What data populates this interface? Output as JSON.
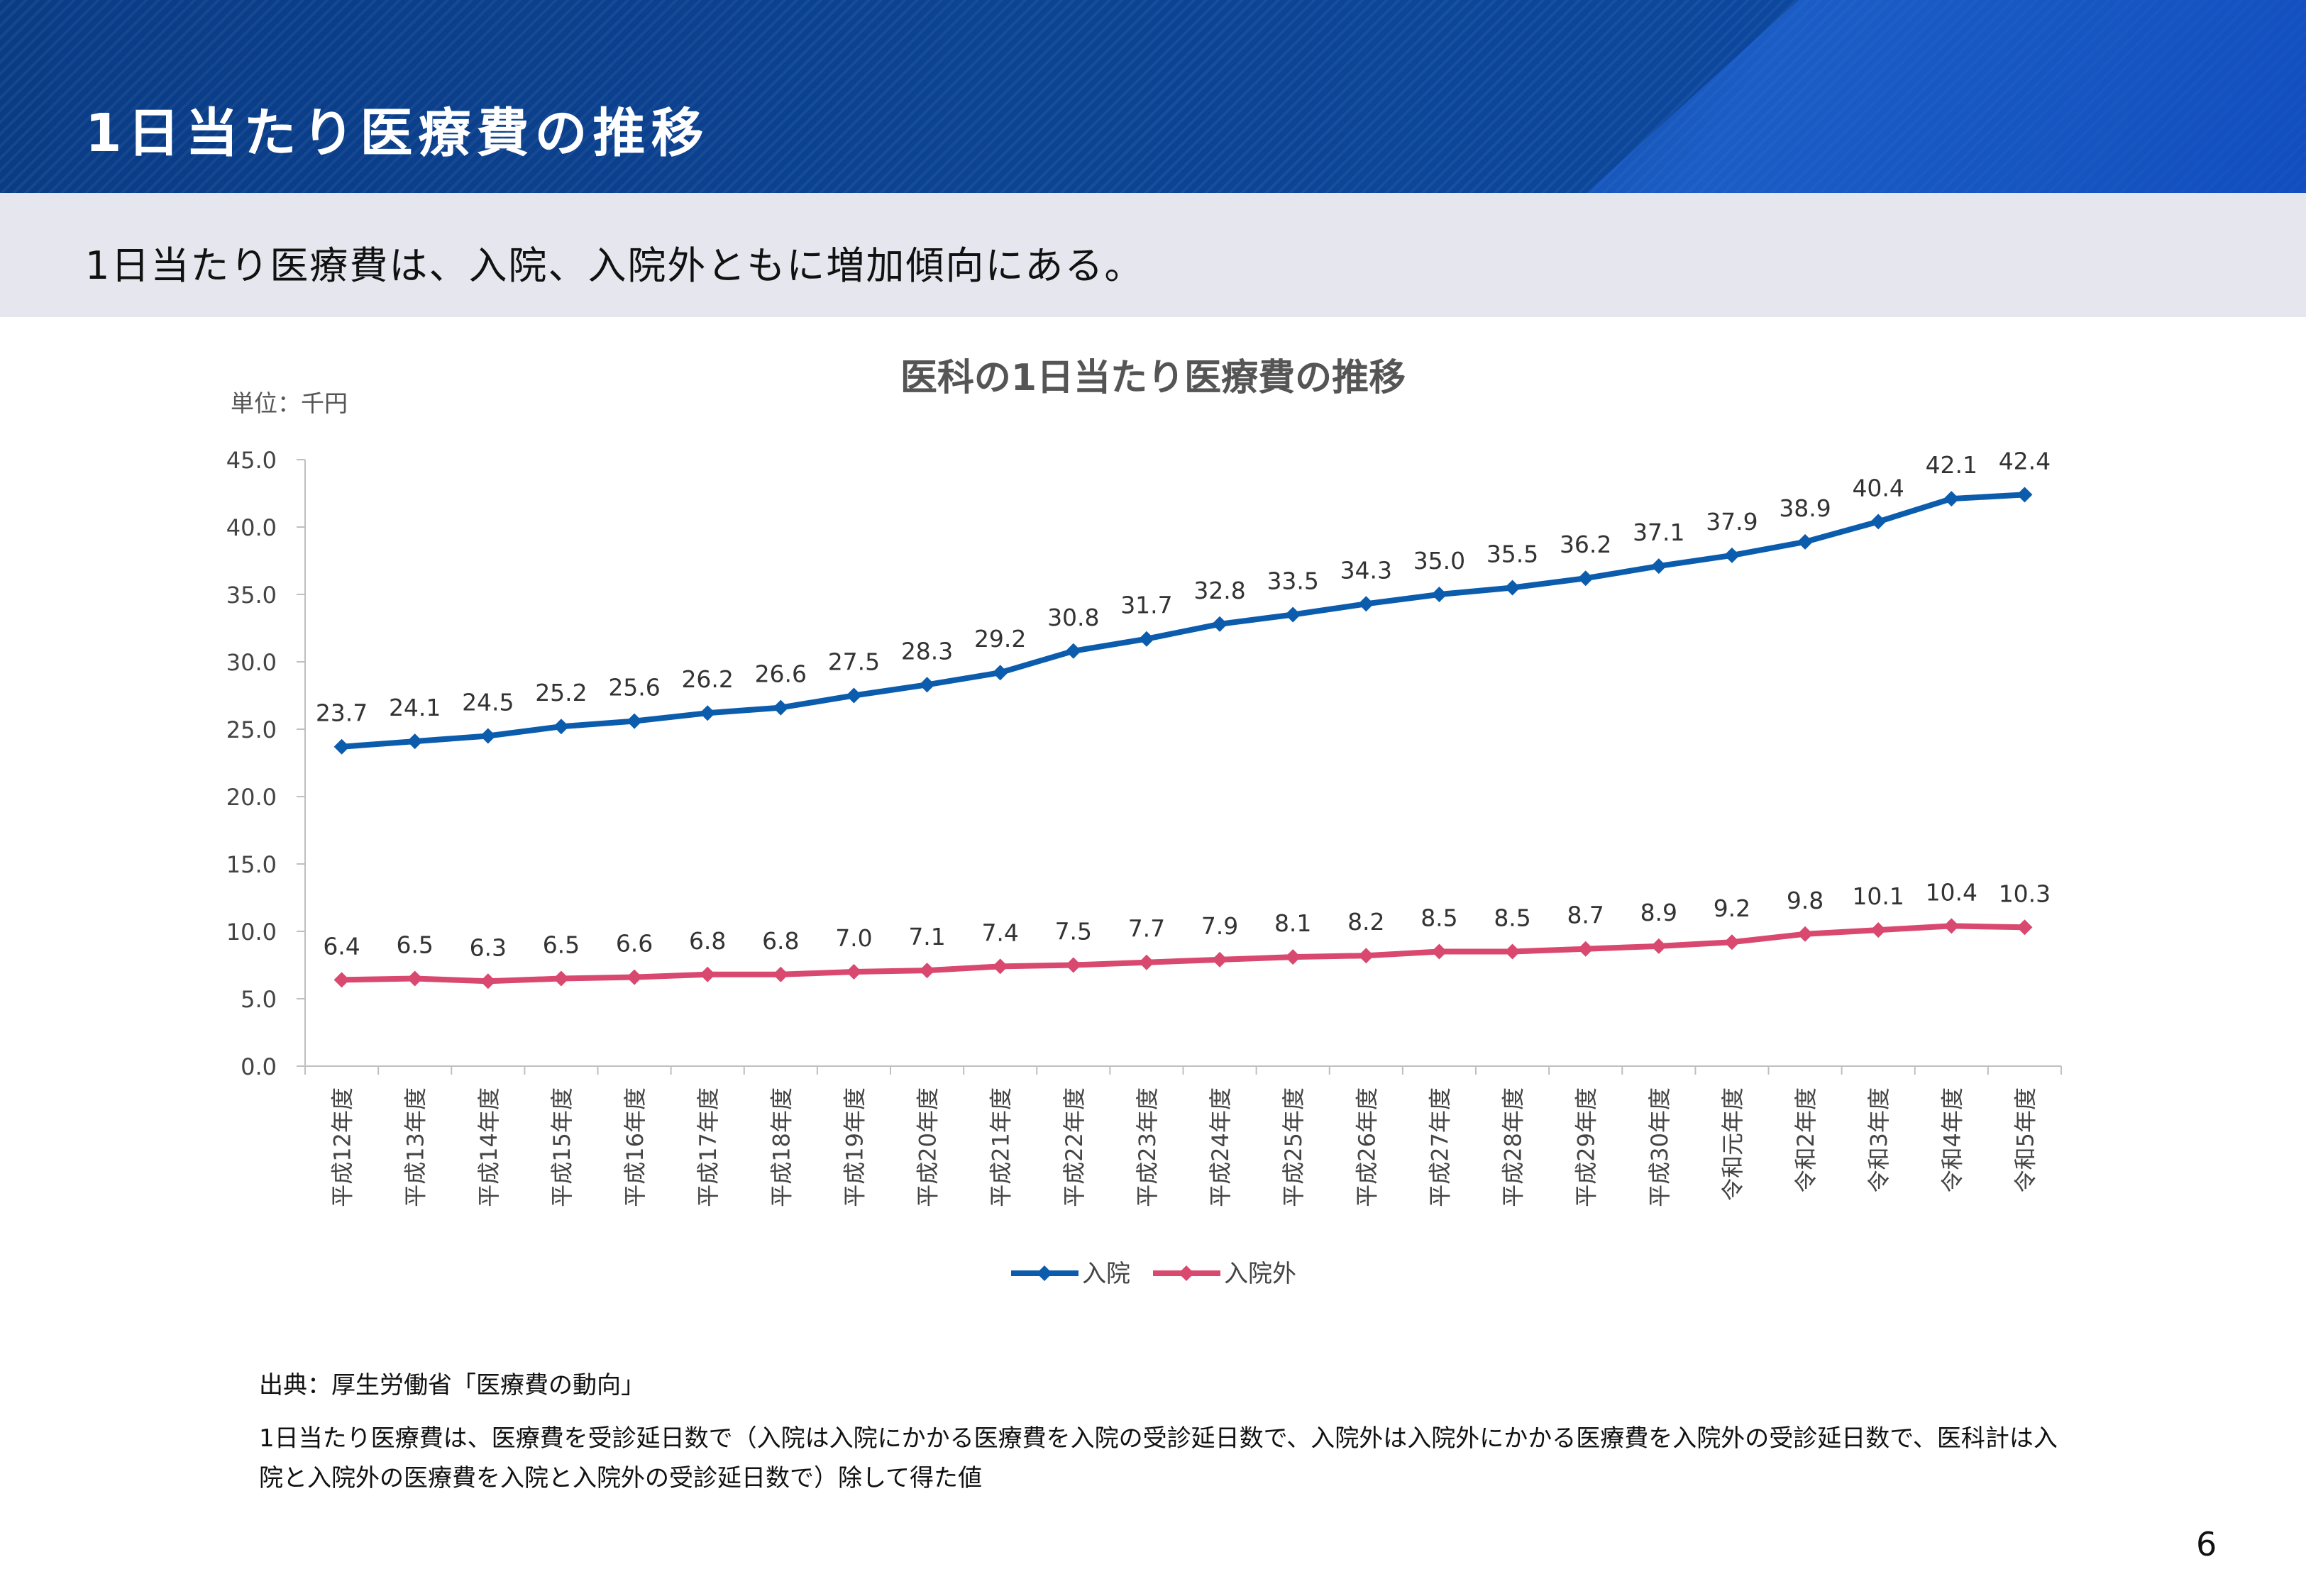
{
  "header": {
    "title": "1日当たり医療費の推移",
    "subtitle": "1日当たり医療費は、入院、入院外ともに増加傾向にある。"
  },
  "chart_data": {
    "type": "line",
    "title": "医科の1日当たり医療費の推移",
    "unit_label": "単位：千円",
    "ylim": [
      0,
      45
    ],
    "ytick_step": 5,
    "yticks": [
      "0.0",
      "5.0",
      "10.0",
      "15.0",
      "20.0",
      "25.0",
      "30.0",
      "35.0",
      "40.0",
      "45.0"
    ],
    "grid": false,
    "legend_position": "bottom",
    "categories": [
      "平成12年度",
      "平成13年度",
      "平成14年度",
      "平成15年度",
      "平成16年度",
      "平成17年度",
      "平成18年度",
      "平成19年度",
      "平成20年度",
      "平成21年度",
      "平成22年度",
      "平成23年度",
      "平成24年度",
      "平成25年度",
      "平成26年度",
      "平成27年度",
      "平成28年度",
      "平成29年度",
      "平成30年度",
      "令和元年度",
      "令和2年度",
      "令和3年度",
      "令和4年度",
      "令和5年度"
    ],
    "series": [
      {
        "name": "入院",
        "color": "#0b5cad",
        "values": [
          23.7,
          24.1,
          24.5,
          25.2,
          25.6,
          26.2,
          26.6,
          27.5,
          28.3,
          29.2,
          30.8,
          31.7,
          32.8,
          33.5,
          34.3,
          35.0,
          35.5,
          36.2,
          37.1,
          37.9,
          38.9,
          40.4,
          42.1,
          42.4
        ]
      },
      {
        "name": "入院外",
        "color": "#d9486e",
        "values": [
          6.4,
          6.5,
          6.3,
          6.5,
          6.6,
          6.8,
          6.8,
          7.0,
          7.1,
          7.4,
          7.5,
          7.7,
          7.9,
          8.1,
          8.2,
          8.5,
          8.5,
          8.7,
          8.9,
          9.2,
          9.8,
          10.1,
          10.4,
          10.3
        ]
      }
    ]
  },
  "footer": {
    "source": "出典：厚生労働省「医療費の動向」",
    "note": "1日当たり医療費は、医療費を受診延日数で（入院は入院にかかる医療費を入院の受診延日数で、入院外は入院外にかかる医療費を入院外の受診延日数で、医科計は入院と入院外の医療費を入院と入院外の受診延日数で）除して得た値",
    "page_number": "6"
  }
}
